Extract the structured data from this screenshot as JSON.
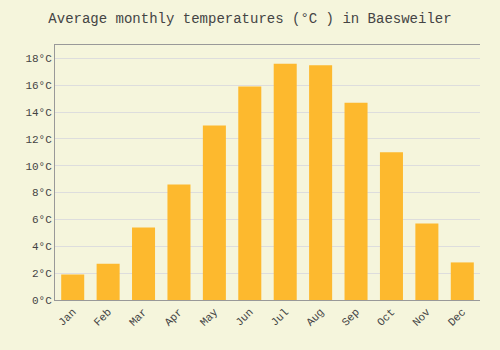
{
  "chart_data": {
    "type": "bar",
    "title": "Average monthly temperatures (°C ) in Baesweiler",
    "categories": [
      "Jan",
      "Feb",
      "Mar",
      "Apr",
      "May",
      "Jun",
      "Jul",
      "Aug",
      "Sep",
      "Oct",
      "Nov",
      "Dec"
    ],
    "values": [
      1.9,
      2.7,
      5.4,
      8.6,
      13.0,
      15.9,
      17.6,
      17.5,
      14.7,
      11.0,
      5.7,
      2.8
    ],
    "color": "#FDB92E",
    "ylim": [
      0,
      19
    ],
    "yticks": [
      {
        "value": 0,
        "label": "0°C"
      },
      {
        "value": 2,
        "label": "2°C"
      },
      {
        "value": 4,
        "label": "4°C"
      },
      {
        "value": 6,
        "label": "6°C"
      },
      {
        "value": 8,
        "label": "8°C"
      },
      {
        "value": 10,
        "label": "10°C"
      },
      {
        "value": 12,
        "label": "12°C"
      },
      {
        "value": 14,
        "label": "14°C"
      },
      {
        "value": 16,
        "label": "16°C"
      },
      {
        "value": 18,
        "label": "18°C"
      }
    ],
    "grid": true
  }
}
